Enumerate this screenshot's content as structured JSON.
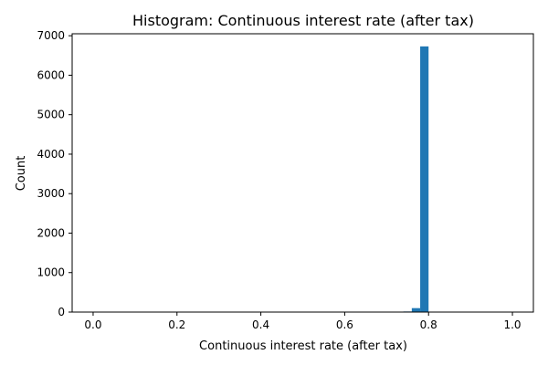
{
  "chart_data": {
    "type": "bar",
    "title": "Histogram:  Continuous interest rate (after tax)",
    "xlabel": "Continuous interest rate (after tax)",
    "ylabel": "Count",
    "xlim": [
      -0.05,
      1.05
    ],
    "ylim": [
      0,
      7050
    ],
    "xticks": [
      0.0,
      0.2,
      0.4,
      0.6,
      0.8,
      1.0
    ],
    "xtick_labels": [
      "0.0",
      "0.2",
      "0.4",
      "0.6",
      "0.8",
      "1.0"
    ],
    "yticks": [
      0,
      1000,
      2000,
      3000,
      4000,
      5000,
      6000,
      7000
    ],
    "ytick_labels": [
      "0",
      "1000",
      "2000",
      "3000",
      "4000",
      "5000",
      "6000",
      "7000"
    ],
    "bins": [
      {
        "x0": 0.74,
        "x1": 0.76,
        "count": 15
      },
      {
        "x0": 0.76,
        "x1": 0.78,
        "count": 100
      },
      {
        "x0": 0.78,
        "x1": 0.8,
        "count": 6730
      }
    ],
    "bar_color": "#1f77b4",
    "grid": false,
    "legend": "none"
  }
}
